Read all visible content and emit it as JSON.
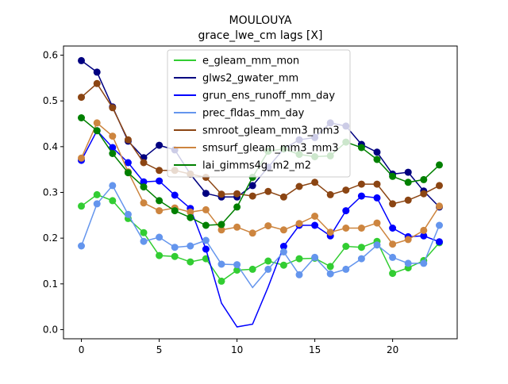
{
  "chart_data": {
    "type": "line",
    "title": "MOULOUYA",
    "subtitle": "grace_lwe_cm lags [X]",
    "xlabel": "",
    "ylabel": "",
    "xlim": [
      -1.15,
      24.15
    ],
    "ylim": [
      -0.02,
      0.62
    ],
    "xticks": [
      0,
      5,
      10,
      15,
      20
    ],
    "yticks": [
      0.0,
      0.1,
      0.2,
      0.3,
      0.4,
      0.5,
      0.6
    ],
    "ytick_labels": [
      "0.0",
      "0.1",
      "0.2",
      "0.3",
      "0.4",
      "0.5",
      "0.6"
    ],
    "grid": false,
    "legend_placement": "top-center",
    "x": [
      0,
      1,
      2,
      3,
      4,
      5,
      6,
      7,
      8,
      9,
      10,
      11,
      12,
      13,
      14,
      15,
      16,
      17,
      18,
      19,
      20,
      21,
      22,
      23
    ],
    "series": [
      {
        "name": "e_gleam_mm_mon",
        "color": "#32cd32",
        "values": [
          0.27,
          0.295,
          0.282,
          0.243,
          0.212,
          0.162,
          0.16,
          0.148,
          0.155,
          0.106,
          0.13,
          0.132,
          0.15,
          0.141,
          0.155,
          0.156,
          0.138,
          0.182,
          0.18,
          0.193,
          0.123,
          0.135,
          0.151,
          0.19
        ],
        "markers": [
          true,
          true,
          true,
          true,
          true,
          true,
          true,
          true,
          true,
          true,
          true,
          true,
          true,
          true,
          true,
          true,
          true,
          true,
          true,
          true,
          true,
          true,
          true,
          true
        ]
      },
      {
        "name": "glws2_gwater_mm",
        "color": "#000080",
        "values": [
          0.588,
          0.563,
          0.487,
          0.412,
          0.376,
          0.403,
          0.393,
          0.34,
          0.298,
          0.29,
          0.29,
          0.315,
          0.355,
          0.395,
          0.415,
          0.42,
          0.452,
          0.445,
          0.405,
          0.388,
          0.34,
          0.344,
          0.303,
          0.268
        ],
        "markers": [
          true,
          true,
          true,
          true,
          true,
          true,
          true,
          true,
          true,
          true,
          true,
          true,
          true,
          true,
          true,
          true,
          true,
          true,
          true,
          true,
          true,
          true,
          true,
          true
        ]
      },
      {
        "name": "grun_ens_runoff_mm_day",
        "color": "#0000ff",
        "values": [
          0.37,
          0.435,
          0.398,
          0.365,
          0.323,
          0.325,
          0.294,
          0.265,
          0.176,
          0.058,
          0.006,
          0.012,
          0.093,
          0.182,
          0.228,
          0.228,
          0.205,
          0.26,
          0.292,
          0.288,
          0.222,
          0.203,
          0.205,
          0.192
        ],
        "markers": [
          true,
          true,
          true,
          true,
          true,
          true,
          true,
          true,
          true,
          false,
          false,
          false,
          false,
          true,
          true,
          true,
          true,
          true,
          true,
          true,
          true,
          true,
          true,
          true
        ]
      },
      {
        "name": "prec_fldas_mm_day",
        "color": "#6495ed",
        "values": [
          0.183,
          0.275,
          0.315,
          0.252,
          0.193,
          0.202,
          0.18,
          0.183,
          0.195,
          0.143,
          0.142,
          0.092,
          0.132,
          0.17,
          0.12,
          0.158,
          0.122,
          0.132,
          0.155,
          0.185,
          0.158,
          0.145,
          0.145,
          0.228
        ],
        "markers": [
          true,
          true,
          true,
          true,
          true,
          true,
          true,
          true,
          true,
          true,
          true,
          false,
          true,
          true,
          true,
          true,
          true,
          true,
          true,
          true,
          true,
          true,
          true,
          true
        ]
      },
      {
        "name": "smroot_gleam_mm3_mm3",
        "color": "#8b4513",
        "values": [
          0.508,
          0.538,
          0.485,
          0.415,
          0.365,
          0.348,
          0.348,
          0.34,
          0.333,
          0.296,
          0.297,
          0.292,
          0.302,
          0.29,
          0.313,
          0.322,
          0.295,
          0.305,
          0.318,
          0.318,
          0.275,
          0.283,
          0.297,
          0.315
        ],
        "markers": [
          true,
          true,
          true,
          true,
          true,
          true,
          true,
          true,
          true,
          true,
          true,
          true,
          true,
          true,
          true,
          true,
          true,
          true,
          true,
          true,
          true,
          true,
          true,
          true
        ]
      },
      {
        "name": "smsurf_gleam_mm3_mm3",
        "color": "#cd853f",
        "values": [
          0.375,
          0.452,
          0.423,
          0.345,
          0.277,
          0.26,
          0.266,
          0.257,
          0.262,
          0.218,
          0.224,
          0.211,
          0.227,
          0.218,
          0.232,
          0.248,
          0.213,
          0.222,
          0.222,
          0.233,
          0.187,
          0.197,
          0.217,
          0.27
        ],
        "markers": [
          true,
          true,
          true,
          true,
          true,
          true,
          true,
          true,
          true,
          true,
          true,
          true,
          true,
          true,
          true,
          true,
          true,
          true,
          true,
          true,
          true,
          true,
          true,
          true
        ]
      },
      {
        "name": "lai_gimms4g_m2_m2",
        "color": "#008000",
        "values": [
          0.463,
          0.435,
          0.385,
          0.343,
          0.312,
          0.282,
          0.26,
          0.245,
          0.228,
          0.23,
          0.268,
          0.333,
          0.39,
          0.395,
          0.383,
          0.378,
          0.38,
          0.41,
          0.398,
          0.372,
          0.335,
          0.322,
          0.328,
          0.36
        ],
        "markers": [
          true,
          true,
          true,
          true,
          true,
          true,
          true,
          true,
          true,
          true,
          true,
          true,
          true,
          true,
          true,
          true,
          true,
          true,
          true,
          true,
          true,
          true,
          true,
          true
        ]
      }
    ]
  }
}
